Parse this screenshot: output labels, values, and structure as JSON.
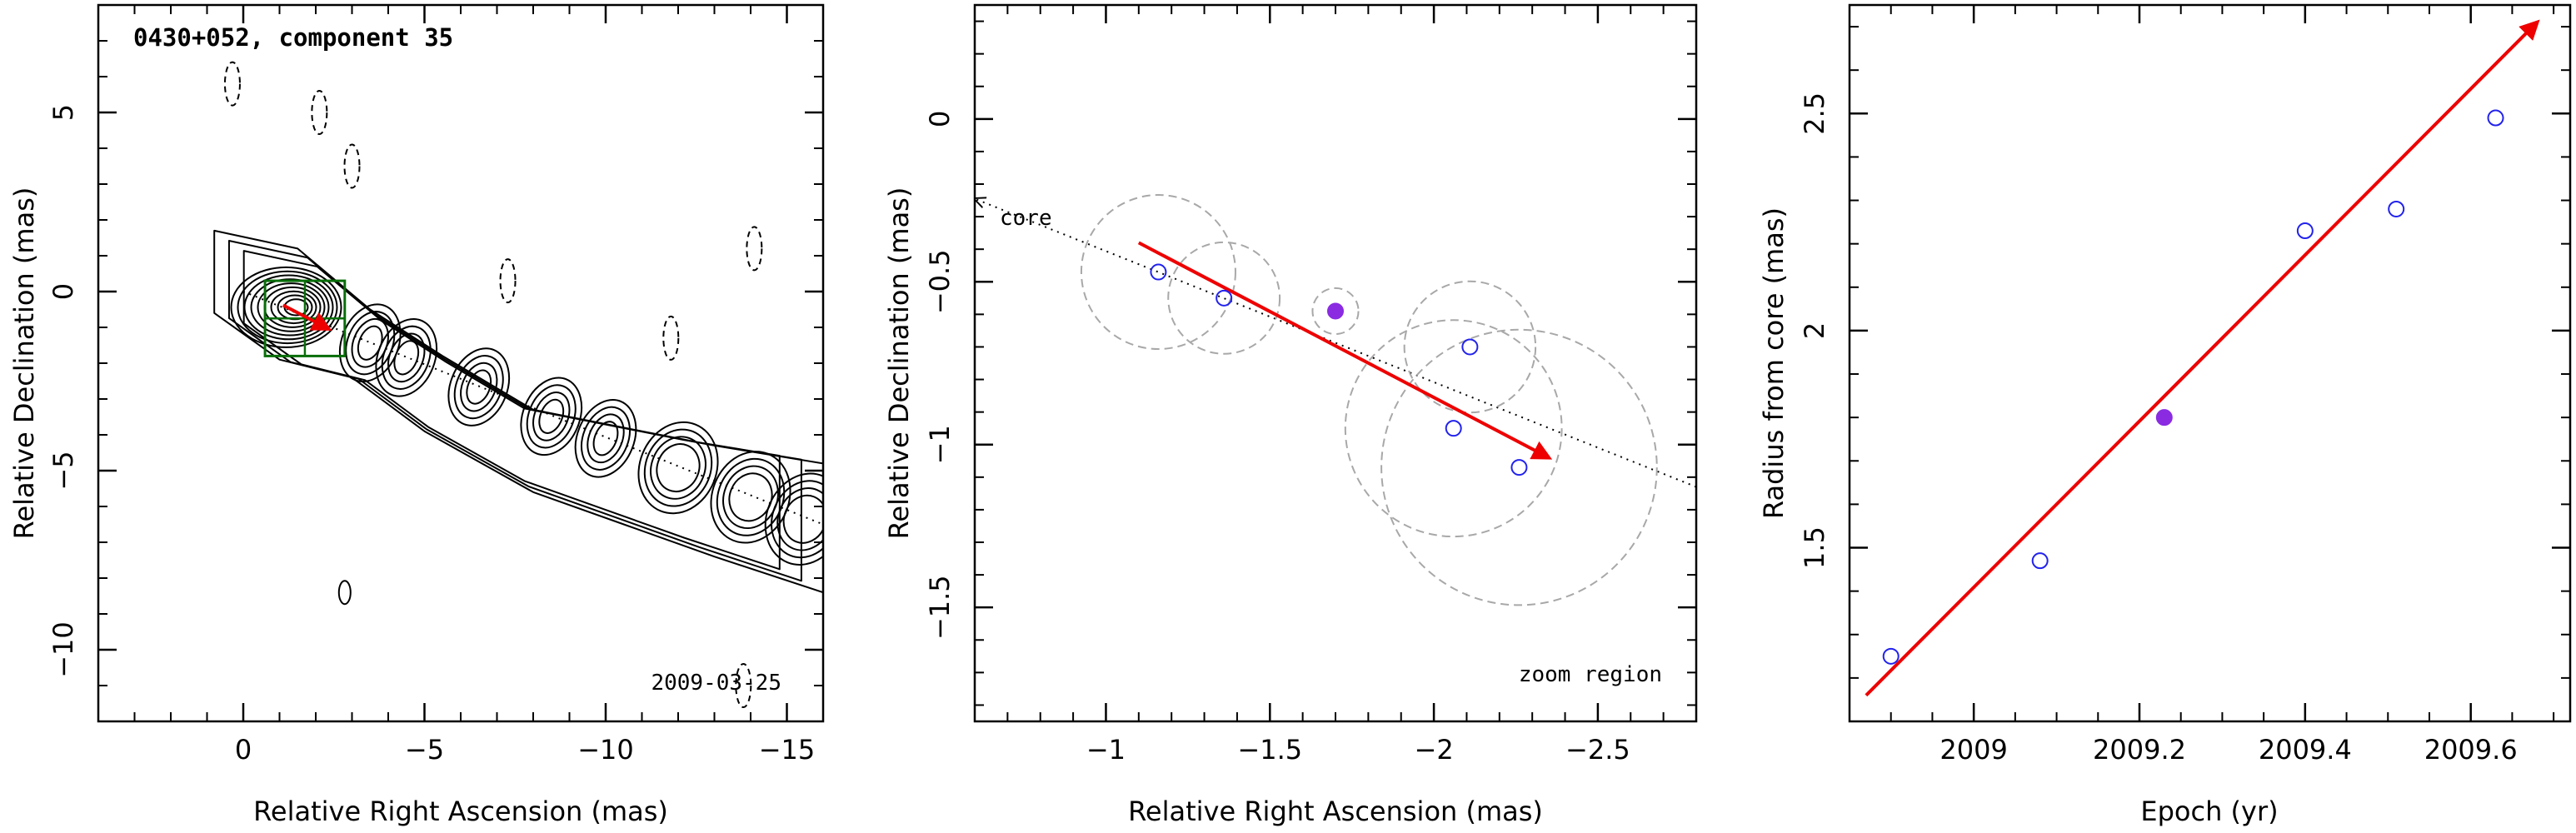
{
  "chart_data": [
    {
      "type": "contour",
      "title": "0430+052, component 35",
      "annotation": "2009-03-25",
      "xlabel": "Relative Right Ascension (mas)",
      "ylabel": "Relative Declination (mas)",
      "xlim": [
        4,
        -16
      ],
      "ylim": [
        -12,
        8
      ],
      "xticks": [
        0,
        -5,
        -10,
        -15
      ],
      "yticks": [
        5,
        0,
        -5,
        -10
      ],
      "jet_axis": {
        "from": [
          0,
          0
        ],
        "to": [
          -16,
          -6.5
        ]
      },
      "zoom_box": {
        "x": [
          -0.6,
          -2.8
        ],
        "y": [
          0.3,
          -1.8
        ]
      },
      "motion_vector": {
        "from": [
          -1.1,
          -0.38
        ],
        "to": [
          -2.35,
          -1.04
        ]
      },
      "ridge_contours_x": [
        -3.5,
        -4.5,
        -6.5,
        -8.5,
        -10,
        -12,
        -14,
        -15.5
      ],
      "dashed_contours": [
        {
          "x": -2.1,
          "y": 5
        },
        {
          "x": -3,
          "y": 3.5
        },
        {
          "x": -7.3,
          "y": 0.3
        },
        {
          "x": -11.8,
          "y": -1.3
        },
        {
          "x": -13.8,
          "y": -11
        },
        {
          "x": 0.3,
          "y": 5.8
        },
        {
          "x": -14.1,
          "y": 1.2
        }
      ],
      "solid_islands": [
        {
          "x": -2.8,
          "y": -8.4
        }
      ]
    },
    {
      "type": "scatter",
      "xlabel": "Relative Right Ascension (mas)",
      "ylabel": "Relative Declination (mas)",
      "annotation": "zoom region",
      "core_label": "core",
      "xlim": [
        -0.6,
        -2.8
      ],
      "ylim": [
        -1.85,
        0.35
      ],
      "xticks": [
        -1,
        -1.5,
        -2,
        -2.5
      ],
      "yticks": [
        0,
        -0.5,
        -1,
        -1.5
      ],
      "points": [
        {
          "x": -1.16,
          "y": -0.47,
          "size": 0.235
        },
        {
          "x": -1.36,
          "y": -0.55,
          "size": 0.17
        },
        {
          "x": -1.7,
          "y": -0.59,
          "size": 0.07,
          "highlight": true
        },
        {
          "x": -2.11,
          "y": -0.7,
          "size": 0.2
        },
        {
          "x": -2.06,
          "y": -0.95,
          "size": 0.33
        },
        {
          "x": -2.26,
          "y": -1.07,
          "size": 0.42
        }
      ],
      "jet_axis": {
        "from": [
          -0.6,
          -0.245
        ],
        "to": [
          -2.8,
          -1.13
        ]
      },
      "motion_vector": {
        "from": [
          -1.1,
          -0.38
        ],
        "to": [
          -2.35,
          -1.04
        ]
      }
    },
    {
      "type": "scatter",
      "xlabel": "Epoch (yr)",
      "ylabel": "Radius from core (mas)",
      "xlim": [
        2008.85,
        2009.72
      ],
      "ylim": [
        1.1,
        2.75
      ],
      "xticks": [
        2009,
        2009.2,
        2009.4,
        2009.6
      ],
      "yticks": [
        1.5,
        2,
        2.5
      ],
      "x": [
        2008.9,
        2009.08,
        2009.23,
        2009.4,
        2009.51,
        2009.63
      ],
      "y": [
        1.25,
        1.47,
        1.8,
        2.23,
        2.28,
        2.49
      ],
      "highlight_index": 2,
      "fit_line": {
        "from": [
          2008.87,
          1.16
        ],
        "to": [
          2009.68,
          2.71
        ]
      }
    }
  ],
  "colors": {
    "contour": "#000000",
    "zoom_box": "#0a6e0a",
    "vector": "#ee0000",
    "point": "#2222ee",
    "highlight": "#8a2be2",
    "circle": "#a8a8a8"
  }
}
